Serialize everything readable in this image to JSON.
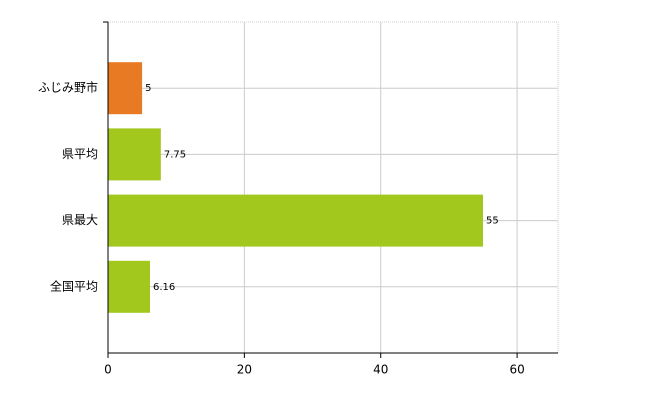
{
  "chart_data": {
    "type": "hbar",
    "categories": [
      "ふじみ野市",
      "県平均",
      "県最大",
      "全国平均"
    ],
    "values": [
      5,
      7.75,
      55,
      6.16
    ],
    "colors": [
      "#e87a24",
      "#a2c81e",
      "#a2c81e",
      "#a2c81e"
    ],
    "xlim": [
      0,
      66
    ],
    "xticks": [
      0,
      20,
      40,
      60
    ],
    "grid": true
  }
}
